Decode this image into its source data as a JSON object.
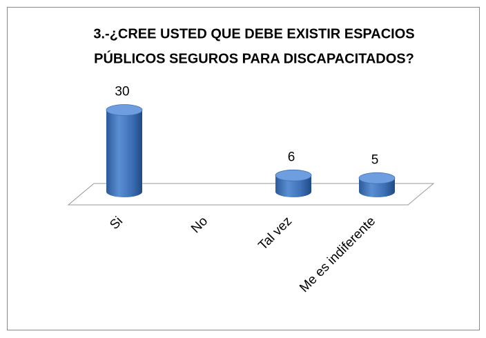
{
  "chart_data": {
    "type": "bar3d",
    "title": [
      "3.-¿CREE USTED QUE DEBE EXISTIR ESPACIOS",
      "PÚBLICOS SEGUROS PARA DISCAPACITADOS?"
    ],
    "categories": [
      "Si",
      "No",
      "Tal vez",
      "Me es indiferente"
    ],
    "values": [
      30,
      null,
      6,
      5
    ],
    "color": "#4a7ebb"
  }
}
